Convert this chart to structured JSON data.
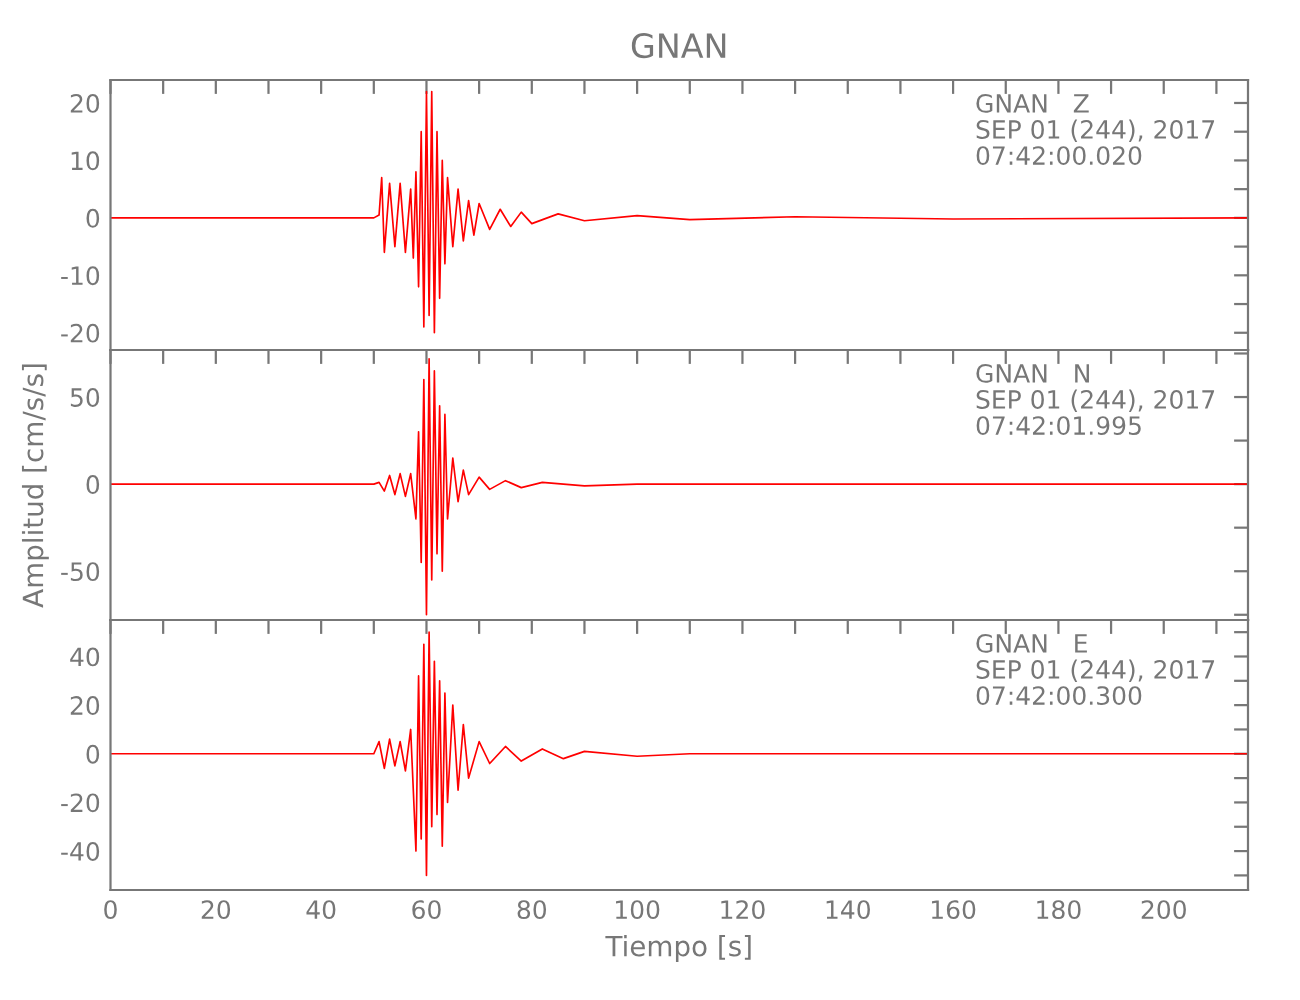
{
  "chart_data": [
    {
      "type": "line",
      "title": "GNAN",
      "annotations": [
        "GNAN   Z\nSEP 01 (244), 2017\n07:42:00.020"
      ],
      "tick_labels": "y",
      "grid": false,
      "xlim": [
        0,
        216
      ],
      "ylim": [
        -23,
        24
      ],
      "xticks": [
        {
          "value": 0,
          "label": null
        },
        {
          "value": 10,
          "label": null
        },
        {
          "value": 20,
          "label": null
        },
        {
          "value": 30,
          "label": null
        },
        {
          "value": 40,
          "label": null
        },
        {
          "value": 50,
          "label": null
        },
        {
          "value": 60,
          "label": null
        },
        {
          "value": 70,
          "label": null
        },
        {
          "value": 80,
          "label": null
        },
        {
          "value": 90,
          "label": null
        },
        {
          "value": 100,
          "label": null
        },
        {
          "value": 110,
          "label": null
        },
        {
          "value": 120,
          "label": null
        },
        {
          "value": 130,
          "label": null
        },
        {
          "value": 140,
          "label": null
        },
        {
          "value": 150,
          "label": null
        },
        {
          "value": 160,
          "label": null
        },
        {
          "value": 170,
          "label": null
        },
        {
          "value": 180,
          "label": null
        },
        {
          "value": 190,
          "label": null
        },
        {
          "value": 200,
          "label": null
        },
        {
          "value": 210,
          "label": null
        }
      ],
      "yticks": [
        -20,
        {
          "value": -15,
          "label": null
        },
        -10,
        {
          "value": -5,
          "label": null
        },
        0,
        {
          "value": 5,
          "label": null
        },
        10,
        {
          "value": 15,
          "label": null
        },
        20
      ],
      "series": [
        {
          "color": "#ff0000",
          "x": [
            0,
            50,
            51,
            51.5,
            52,
            53,
            54,
            55,
            56,
            57,
            57.5,
            58,
            58.5,
            59,
            59.5,
            60,
            60.5,
            61,
            61.5,
            62,
            62.5,
            63,
            63.5,
            64,
            65,
            66,
            67,
            68,
            69,
            70,
            72,
            74,
            76,
            78,
            80,
            85,
            90,
            100,
            110,
            130,
            160,
            216
          ],
          "values": [
            0,
            0,
            0.5,
            7,
            -6,
            6,
            -5,
            6,
            -6,
            5,
            -7,
            8,
            -12,
            15,
            -19,
            22,
            -17,
            22,
            -20,
            15,
            -14,
            10,
            -8,
            7,
            -5,
            5,
            -4,
            3,
            -3,
            2.5,
            -2,
            1.5,
            -1.5,
            1,
            -1,
            0.7,
            -0.5,
            0.4,
            -0.3,
            0.2,
            -0.2,
            0
          ]
        }
      ]
    },
    {
      "type": "line",
      "ylabel": "Amplitud [cm/s/s]",
      "annotations": [
        "GNAN   N\nSEP 01 (244), 2017\n07:42:01.995"
      ],
      "tick_labels": "y",
      "grid": false,
      "xlim": [
        0,
        216
      ],
      "ylim": [
        -78,
        77
      ],
      "xticks": [
        {
          "value": 0,
          "label": null
        },
        {
          "value": 10,
          "label": null
        },
        {
          "value": 20,
          "label": null
        },
        {
          "value": 30,
          "label": null
        },
        {
          "value": 40,
          "label": null
        },
        {
          "value": 50,
          "label": null
        },
        {
          "value": 60,
          "label": null
        },
        {
          "value": 70,
          "label": null
        },
        {
          "value": 80,
          "label": null
        },
        {
          "value": 90,
          "label": null
        },
        {
          "value": 100,
          "label": null
        },
        {
          "value": 110,
          "label": null
        },
        {
          "value": 120,
          "label": null
        },
        {
          "value": 130,
          "label": null
        },
        {
          "value": 140,
          "label": null
        },
        {
          "value": 150,
          "label": null
        },
        {
          "value": 160,
          "label": null
        },
        {
          "value": 170,
          "label": null
        },
        {
          "value": 180,
          "label": null
        },
        {
          "value": 190,
          "label": null
        },
        {
          "value": 200,
          "label": null
        },
        {
          "value": 210,
          "label": null
        }
      ],
      "yticks": [
        {
          "value": -75,
          "label": null
        },
        -50,
        {
          "value": -25,
          "label": null
        },
        0,
        {
          "value": 25,
          "label": null
        },
        50,
        {
          "value": 75,
          "label": null
        }
      ],
      "series": [
        {
          "color": "#ff0000",
          "x": [
            0,
            50,
            51,
            52,
            53,
            54,
            55,
            56,
            57,
            58,
            58.5,
            59,
            59.5,
            60,
            60.5,
            61,
            61.5,
            62,
            62.5,
            63,
            63.5,
            64,
            65,
            66,
            67,
            68,
            70,
            72,
            75,
            78,
            82,
            90,
            100,
            216
          ],
          "values": [
            0,
            0,
            1,
            -4,
            5,
            -6,
            6,
            -7,
            6,
            -20,
            30,
            -45,
            60,
            -75,
            72,
            -55,
            65,
            -40,
            45,
            -50,
            40,
            -20,
            15,
            -10,
            8,
            -6,
            4,
            -3,
            2,
            -2,
            1,
            -1,
            0,
            0
          ]
        }
      ]
    },
    {
      "type": "line",
      "xlabel": "Tiempo [s]",
      "annotations": [
        "GNAN   E\nSEP 01 (244), 2017\n07:42:00.300"
      ],
      "grid": false,
      "xlim": [
        0,
        216
      ],
      "ylim": [
        -56,
        55
      ],
      "xticks": [
        0,
        {
          "value": 10,
          "label": null
        },
        20,
        {
          "value": 30,
          "label": null
        },
        40,
        {
          "value": 50,
          "label": null
        },
        60,
        {
          "value": 70,
          "label": null
        },
        80,
        {
          "value": 90,
          "label": null
        },
        100,
        {
          "value": 110,
          "label": null
        },
        120,
        {
          "value": 130,
          "label": null
        },
        140,
        {
          "value": 150,
          "label": null
        },
        160,
        {
          "value": 170,
          "label": null
        },
        180,
        {
          "value": 190,
          "label": null
        },
        200,
        {
          "value": 210,
          "label": null
        }
      ],
      "yticks": [
        {
          "value": -50,
          "label": null
        },
        -40,
        {
          "value": -30,
          "label": null
        },
        -20,
        {
          "value": -10,
          "label": null
        },
        0,
        {
          "value": 10,
          "label": null
        },
        20,
        {
          "value": 30,
          "label": null
        },
        40,
        {
          "value": 50,
          "label": null
        }
      ],
      "series": [
        {
          "color": "#ff0000",
          "x": [
            0,
            50,
            51,
            52,
            53,
            54,
            55,
            56,
            57,
            58,
            58.5,
            59,
            59.5,
            60,
            60.5,
            61,
            61.5,
            62,
            62.5,
            63,
            63.5,
            64,
            65,
            66,
            67,
            68,
            70,
            72,
            75,
            78,
            82,
            86,
            90,
            100,
            110,
            216
          ],
          "values": [
            0,
            0,
            5,
            -6,
            6,
            -5,
            5,
            -7,
            10,
            -40,
            32,
            -35,
            45,
            -50,
            50,
            -30,
            38,
            -25,
            30,
            -38,
            25,
            -20,
            20,
            -15,
            12,
            -10,
            5,
            -4,
            3,
            -3,
            2,
            -2,
            1,
            -1,
            0,
            0
          ]
        }
      ]
    }
  ]
}
